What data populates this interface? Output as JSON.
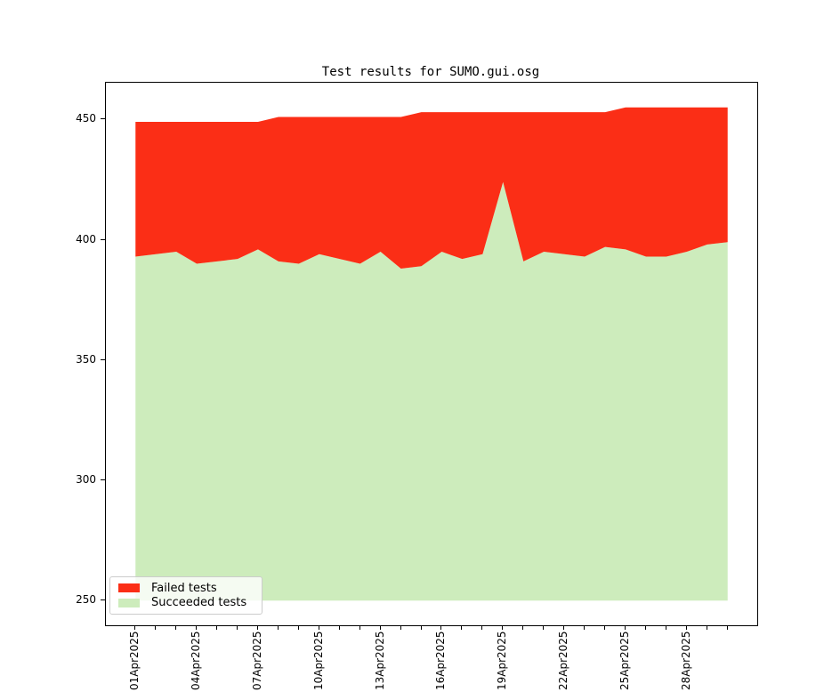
{
  "chart_data": {
    "type": "area",
    "stacked": true,
    "title": "Test results for SUMO.gui.osg",
    "legend_position": "lower left",
    "grid": false,
    "baseline": 250,
    "yticks": [
      250,
      300,
      350,
      400,
      450
    ],
    "ylim": [
      239.75,
      465.25
    ],
    "num_days": 30,
    "x_label_interval": 3,
    "x_tick_labels": [
      "01Apr2025",
      "04Apr2025",
      "07Apr2025",
      "10Apr2025",
      "13Apr2025",
      "16Apr2025",
      "19Apr2025",
      "22Apr2025",
      "25Apr2025",
      "28Apr2025"
    ],
    "series": [
      {
        "name": "Failed tests",
        "color": "#fb2e16"
      },
      {
        "name": "Succeeded tests",
        "color": "#cdecbc"
      }
    ],
    "succeeded": [
      393,
      394,
      395,
      390,
      391,
      392,
      396,
      391,
      390,
      394,
      392,
      390,
      395,
      388,
      389,
      395,
      392,
      394,
      424,
      391,
      395,
      394,
      393,
      397,
      396,
      393,
      393,
      395,
      398,
      399
    ],
    "total": [
      449,
      449,
      449,
      449,
      449,
      449,
      449,
      451,
      451,
      451,
      451,
      451,
      451,
      451,
      453,
      453,
      453,
      453,
      453,
      453,
      453,
      453,
      453,
      453,
      455,
      455,
      455,
      455,
      455,
      455
    ]
  }
}
